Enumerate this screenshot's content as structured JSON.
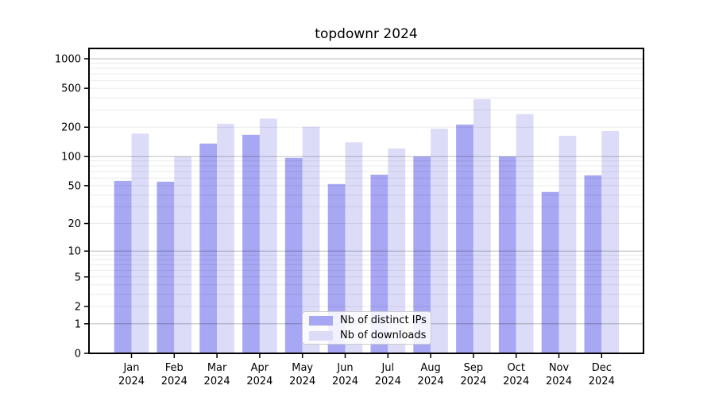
{
  "chart_data": {
    "type": "bar",
    "title": "topdownr 2024",
    "categories": [
      "Jan",
      "Feb",
      "Mar",
      "Apr",
      "May",
      "Jun",
      "Jul",
      "Aug",
      "Sep",
      "Oct",
      "Nov",
      "Dec"
    ],
    "x_year": "2024",
    "series": [
      {
        "name": "Nb of distinct IPs",
        "color": "#a7a7f3",
        "values": [
          56,
          55,
          136,
          167,
          97,
          52,
          65,
          100,
          213,
          100,
          43,
          64
        ]
      },
      {
        "name": "Nb of downloads",
        "color": "#dcdcf9",
        "values": [
          172,
          100,
          217,
          245,
          202,
          140,
          121,
          193,
          388,
          272,
          163,
          183
        ]
      }
    ],
    "y_scale": "log10(1+value)",
    "y_ticks": [
      0,
      1,
      2,
      5,
      10,
      20,
      50,
      100,
      200,
      500,
      1000
    ],
    "ylim": [
      0,
      1000
    ],
    "grid": "horizontal major and minor, drawn over bars",
    "legend_position": "lower center"
  },
  "colors": {
    "background": "#ffffff",
    "axis": "#000000",
    "tick_label": "#000000",
    "grid_major": "rgba(0,0,0,0.22)",
    "grid_minor": "rgba(0,0,0,0.08)",
    "legend_border": "#cccccc",
    "legend_background": "rgba(255,255,255,0.85)"
  }
}
